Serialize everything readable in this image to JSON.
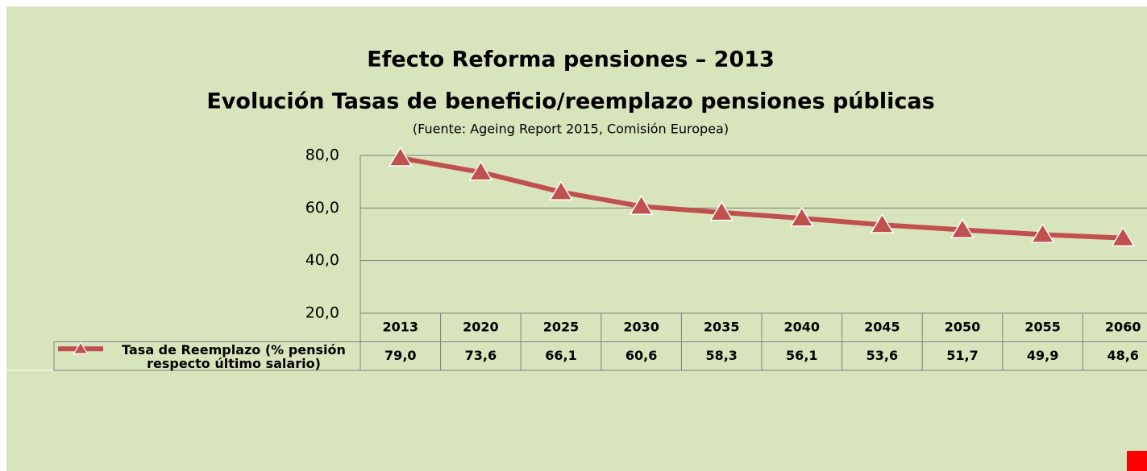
{
  "chart_data": {
    "type": "line",
    "title": "Efecto Reforma pensiones – 2013",
    "subtitle": "Evolución Tasas de beneficio/reemplazo pensiones públicas",
    "source": "(Fuente: Ageing Report 2015, Comisión Europea)",
    "categories": [
      "2013",
      "2020",
      "2025",
      "2030",
      "2035",
      "2040",
      "2045",
      "2050",
      "2055",
      "2060"
    ],
    "series": [
      {
        "name": "Tasa de Reemplazo (% pensión respecto último salario)",
        "color": "#c0504d",
        "values": [
          79.0,
          73.6,
          66.1,
          60.6,
          58.3,
          56.1,
          53.6,
          51.7,
          49.9,
          48.6
        ],
        "value_labels": [
          "79,0",
          "73,6",
          "66,1",
          "60,6",
          "58,3",
          "56,1",
          "53,6",
          "51,7",
          "49,9",
          "48,6"
        ]
      }
    ],
    "ylim": [
      20,
      80
    ],
    "yticks": [
      {
        "value": 20,
        "label": "20,0"
      },
      {
        "value": 40,
        "label": "40,0"
      },
      {
        "value": 60,
        "label": "60,0"
      },
      {
        "value": 80,
        "label": "80,0"
      }
    ],
    "grid": true
  }
}
